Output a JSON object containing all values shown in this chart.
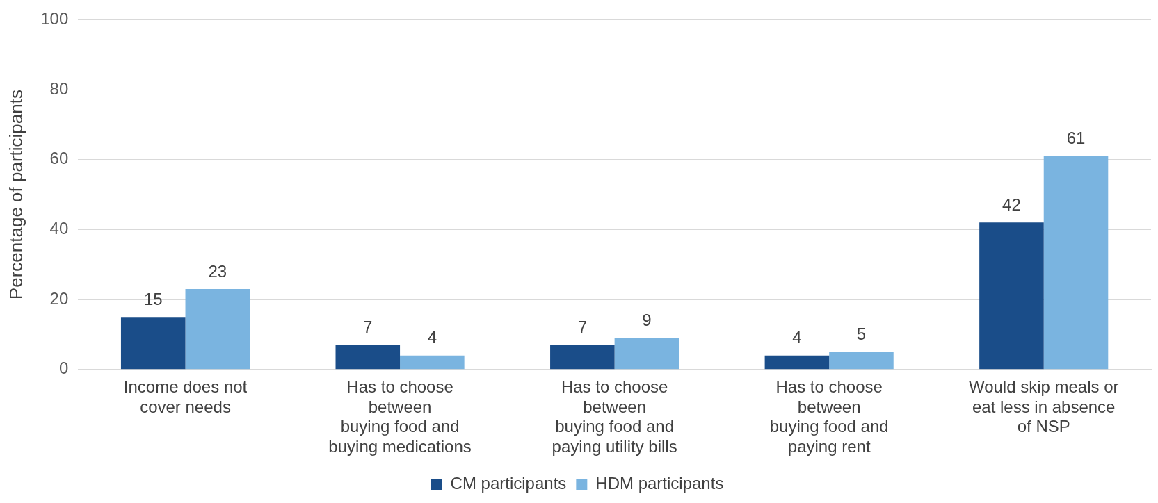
{
  "chart_data": {
    "type": "bar",
    "ylabel": "Percentage of participants",
    "categories": [
      "Income does not\ncover needs",
      "Has to choose\nbetween\nbuying food and\nbuying medications",
      "Has to choose\nbetween\nbuying food and\npaying utility bills",
      "Has to choose\nbetween\nbuying food and\npaying rent",
      "Would skip meals or\neat less in absence\nof NSP"
    ],
    "series": [
      {
        "name": "CM participants",
        "color": "#1a4d89",
        "values": [
          15,
          7,
          7,
          4,
          42
        ]
      },
      {
        "name": "HDM participants",
        "color": "#7ab4e0",
        "values": [
          23,
          4,
          9,
          5,
          61
        ]
      }
    ],
    "ylim": [
      0,
      100
    ],
    "yticks": [
      0,
      20,
      40,
      60,
      80,
      100
    ],
    "grid": "y",
    "legend": "bottom",
    "data_labels": true
  }
}
